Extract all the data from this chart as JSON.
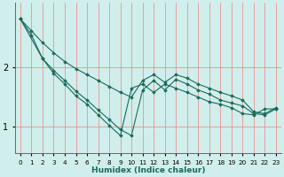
{
  "xlabel": "Humidex (Indice chaleur)",
  "xlim": [
    -0.5,
    23.5
  ],
  "ylim": [
    0.55,
    3.1
  ],
  "yticks": [
    1,
    2
  ],
  "xticks": [
    0,
    1,
    2,
    3,
    4,
    5,
    6,
    7,
    8,
    9,
    10,
    11,
    12,
    13,
    14,
    15,
    16,
    17,
    18,
    19,
    20,
    21,
    22,
    23
  ],
  "bg_color": "#d0eeec",
  "grid_color": "#f08080",
  "line_color": "#1a6b5a",
  "series": [
    {
      "x": [
        0,
        1,
        2,
        3,
        4,
        5,
        6,
        7,
        8,
        9,
        10,
        11,
        12,
        13,
        14,
        15,
        16,
        17,
        18,
        19,
        20,
        21,
        22,
        23
      ],
      "y": [
        2.82,
        2.62,
        2.42,
        2.25,
        2.1,
        1.98,
        1.88,
        1.78,
        1.68,
        1.58,
        1.5,
        1.78,
        1.88,
        1.75,
        1.88,
        1.82,
        1.72,
        1.65,
        1.58,
        1.52,
        1.45,
        1.25,
        1.22,
        1.32
      ]
    },
    {
      "x": [
        0,
        2,
        3,
        4,
        5,
        6,
        7,
        8,
        9,
        10,
        11,
        12,
        13,
        14,
        15,
        16,
        17,
        18,
        19,
        20,
        21,
        22,
        23
      ],
      "y": [
        2.82,
        2.15,
        1.9,
        1.72,
        1.52,
        1.38,
        1.2,
        1.02,
        0.85,
        1.65,
        1.72,
        1.58,
        1.72,
        1.65,
        1.58,
        1.5,
        1.42,
        1.38,
        1.32,
        1.22,
        1.2,
        1.3,
        1.3
      ]
    },
    {
      "x": [
        0,
        1,
        2,
        3,
        4,
        5,
        6,
        7,
        8,
        9,
        10,
        11,
        12,
        13,
        14,
        15,
        16,
        17,
        18,
        19,
        20,
        21,
        22,
        23
      ],
      "y": [
        2.82,
        2.55,
        2.15,
        1.95,
        1.78,
        1.6,
        1.45,
        1.28,
        1.12,
        0.95,
        0.85,
        1.62,
        1.78,
        1.62,
        1.8,
        1.72,
        1.62,
        1.55,
        1.45,
        1.4,
        1.35,
        1.22,
        1.2,
        1.3
      ]
    }
  ]
}
